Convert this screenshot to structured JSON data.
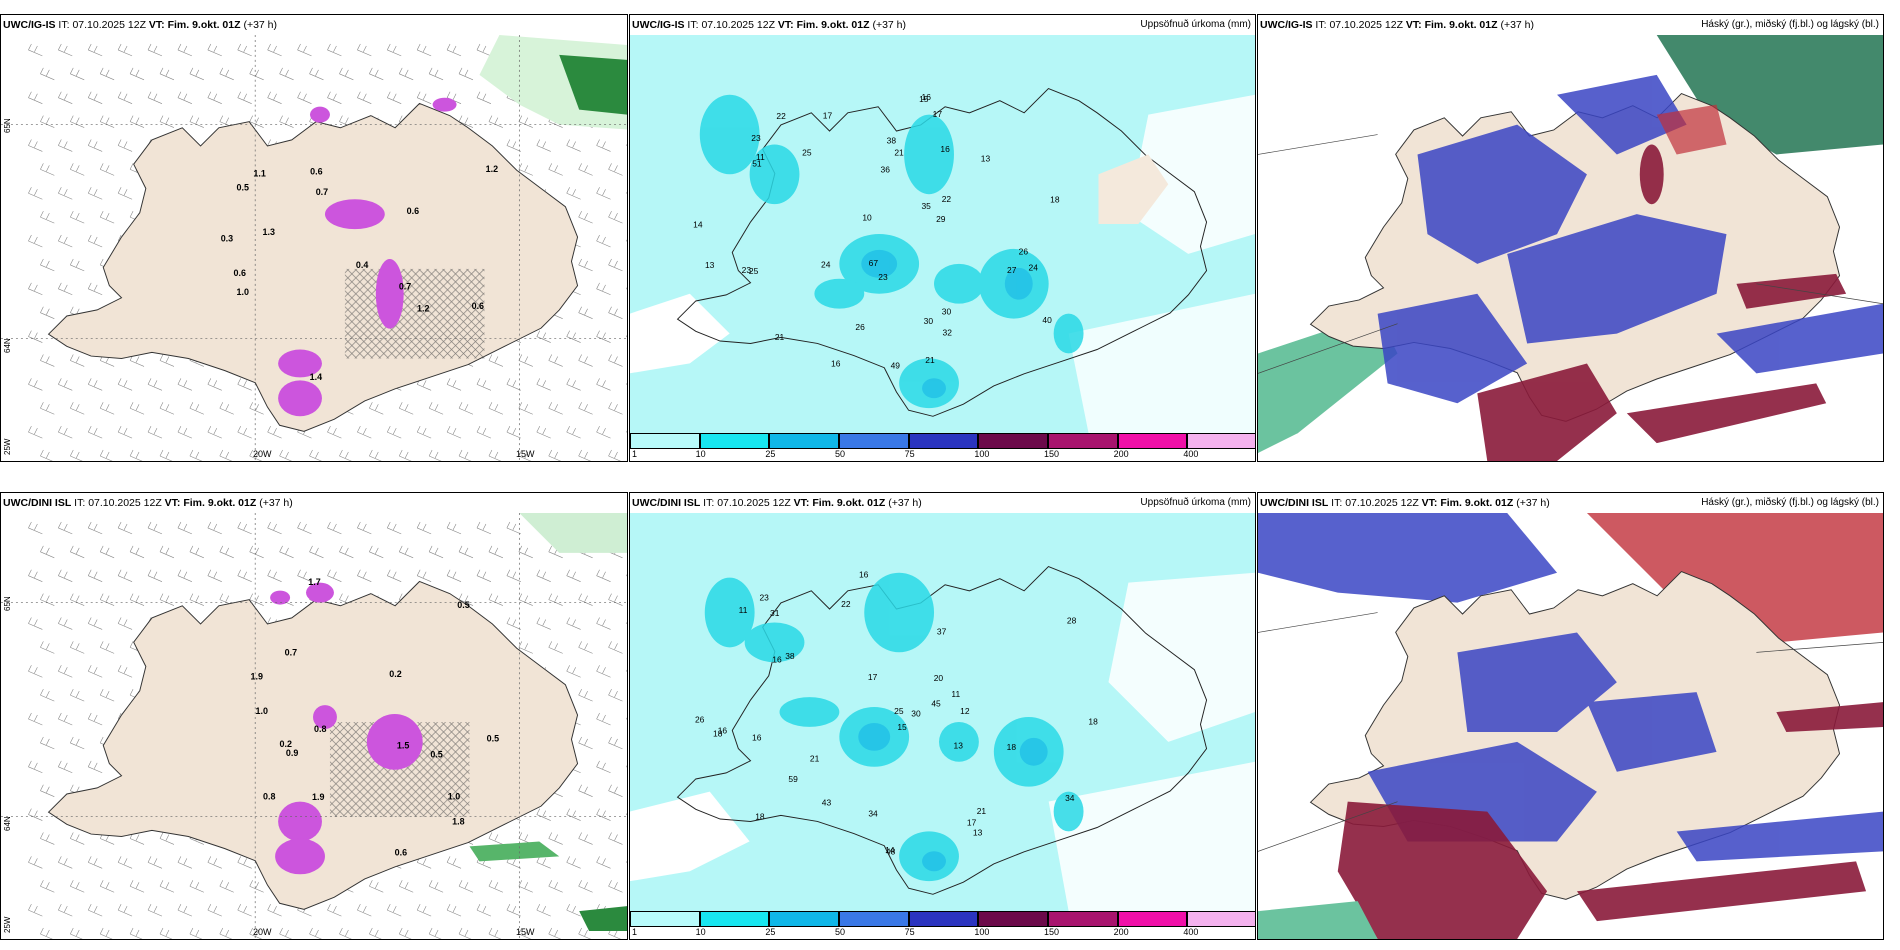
{
  "panels": [
    {
      "model": "UWC/IG-IS",
      "it_label": "IT:",
      "it_value": "07.10.2025 12Z",
      "vt_label": "VT:",
      "vt_value": "Fim. 9.okt. 01Z",
      "lead": "(+37 h)",
      "right": ""
    },
    {
      "model": "UWC/IG-IS",
      "it_label": "IT:",
      "it_value": "07.10.2025 12Z",
      "vt_label": "VT:",
      "vt_value": "Fim. 9.okt. 01Z",
      "lead": "(+37 h)",
      "right": "Uppsöfnuð úrkoma (mm)"
    },
    {
      "model": "UWC/IG-IS",
      "it_label": "IT:",
      "it_value": "07.10.2025 12Z",
      "vt_label": "VT:",
      "vt_value": "Fim. 9.okt. 01Z",
      "lead": "(+37 h)",
      "right": "Háský (gr.), miðský (fj.bl.) og lágský (bl.)"
    },
    {
      "model": "UWC/DINI ISL",
      "it_label": "IT:",
      "it_value": "07.10.2025 12Z",
      "vt_label": "VT:",
      "vt_value": "Fim. 9.okt. 01Z",
      "lead": "(+37 h)",
      "right": ""
    },
    {
      "model": "UWC/DINI ISL",
      "it_label": "IT:",
      "it_value": "07.10.2025 12Z",
      "vt_label": "VT:",
      "vt_value": "Fim. 9.okt. 01Z",
      "lead": "(+37 h)",
      "right": "Uppsöfnuð úrkoma (mm)"
    },
    {
      "model": "UWC/DINI ISL",
      "it_label": "IT:",
      "it_value": "07.10.2025 12Z",
      "vt_label": "VT:",
      "vt_value": "Fim. 9.okt. 01Z",
      "lead": "(+37 h)",
      "right": "Háský (gr.), miðský (fj.bl.) og lágský (bl.)"
    }
  ],
  "axis": {
    "lon_20": "20W",
    "lon_15": "15W",
    "lat_65": "65N",
    "lat_64": "64N",
    "lon_25": "25W"
  },
  "colorbar": {
    "ticks": [
      "1",
      "10",
      "25",
      "50",
      "75",
      "100",
      "150",
      "200",
      "400"
    ],
    "colors": [
      "#b8fbfb",
      "#18e6f0",
      "#10b7e8",
      "#3a78e6",
      "#2b34c0",
      "#6c0a4a",
      "#a8146e",
      "#f010a8",
      "#f4b2ee"
    ]
  },
  "colors": {
    "land": "#f1e4d6",
    "precip": "#b6f7f7",
    "precip2": "#2ad9e6",
    "snow": "#cc55dd",
    "hi_cloud": "#1e8a4a",
    "mid_cloud": "#c0303a",
    "low_cloud": "#3040c0"
  },
  "precip_labels_top": [
    "22",
    "23",
    "21",
    "30",
    "16",
    "23",
    "18",
    "26",
    "23",
    "49",
    "40",
    "26",
    "25",
    "51",
    "38",
    "35",
    "24",
    "22",
    "17",
    "13",
    "15",
    "11",
    "16",
    "16",
    "25",
    "21",
    "32",
    "30",
    "14",
    "24",
    "17",
    "29",
    "36",
    "21",
    "67",
    "13",
    "10",
    "27"
  ],
  "precip_labels_bot": [
    "18",
    "11",
    "14",
    "16",
    "15",
    "13",
    "34",
    "28",
    "25",
    "21",
    "20",
    "26",
    "59",
    "18",
    "17",
    "16",
    "18",
    "48",
    "43",
    "12",
    "31",
    "45",
    "38",
    "34",
    "37",
    "21",
    "18",
    "17",
    "30",
    "22",
    "16",
    "23",
    "16",
    "11",
    "13"
  ],
  "wind_labels_top": [
    "0.3",
    "0.7",
    "0.6",
    "0.6",
    "1.1",
    "1.4",
    "0.7",
    "1.3",
    "0.6",
    "0.5",
    "0.4",
    "1.2",
    "1.2",
    "0.6",
    "1.0"
  ],
  "wind_labels_bot": [
    "0.5",
    "0.5",
    "0.2",
    "0.8",
    "0.7",
    "1.8",
    "0.9",
    "1.0",
    "1.0",
    "1.9",
    "0.5",
    "0.6",
    "0.2",
    "1.9",
    "1.7",
    "1.5",
    "0.8"
  ]
}
